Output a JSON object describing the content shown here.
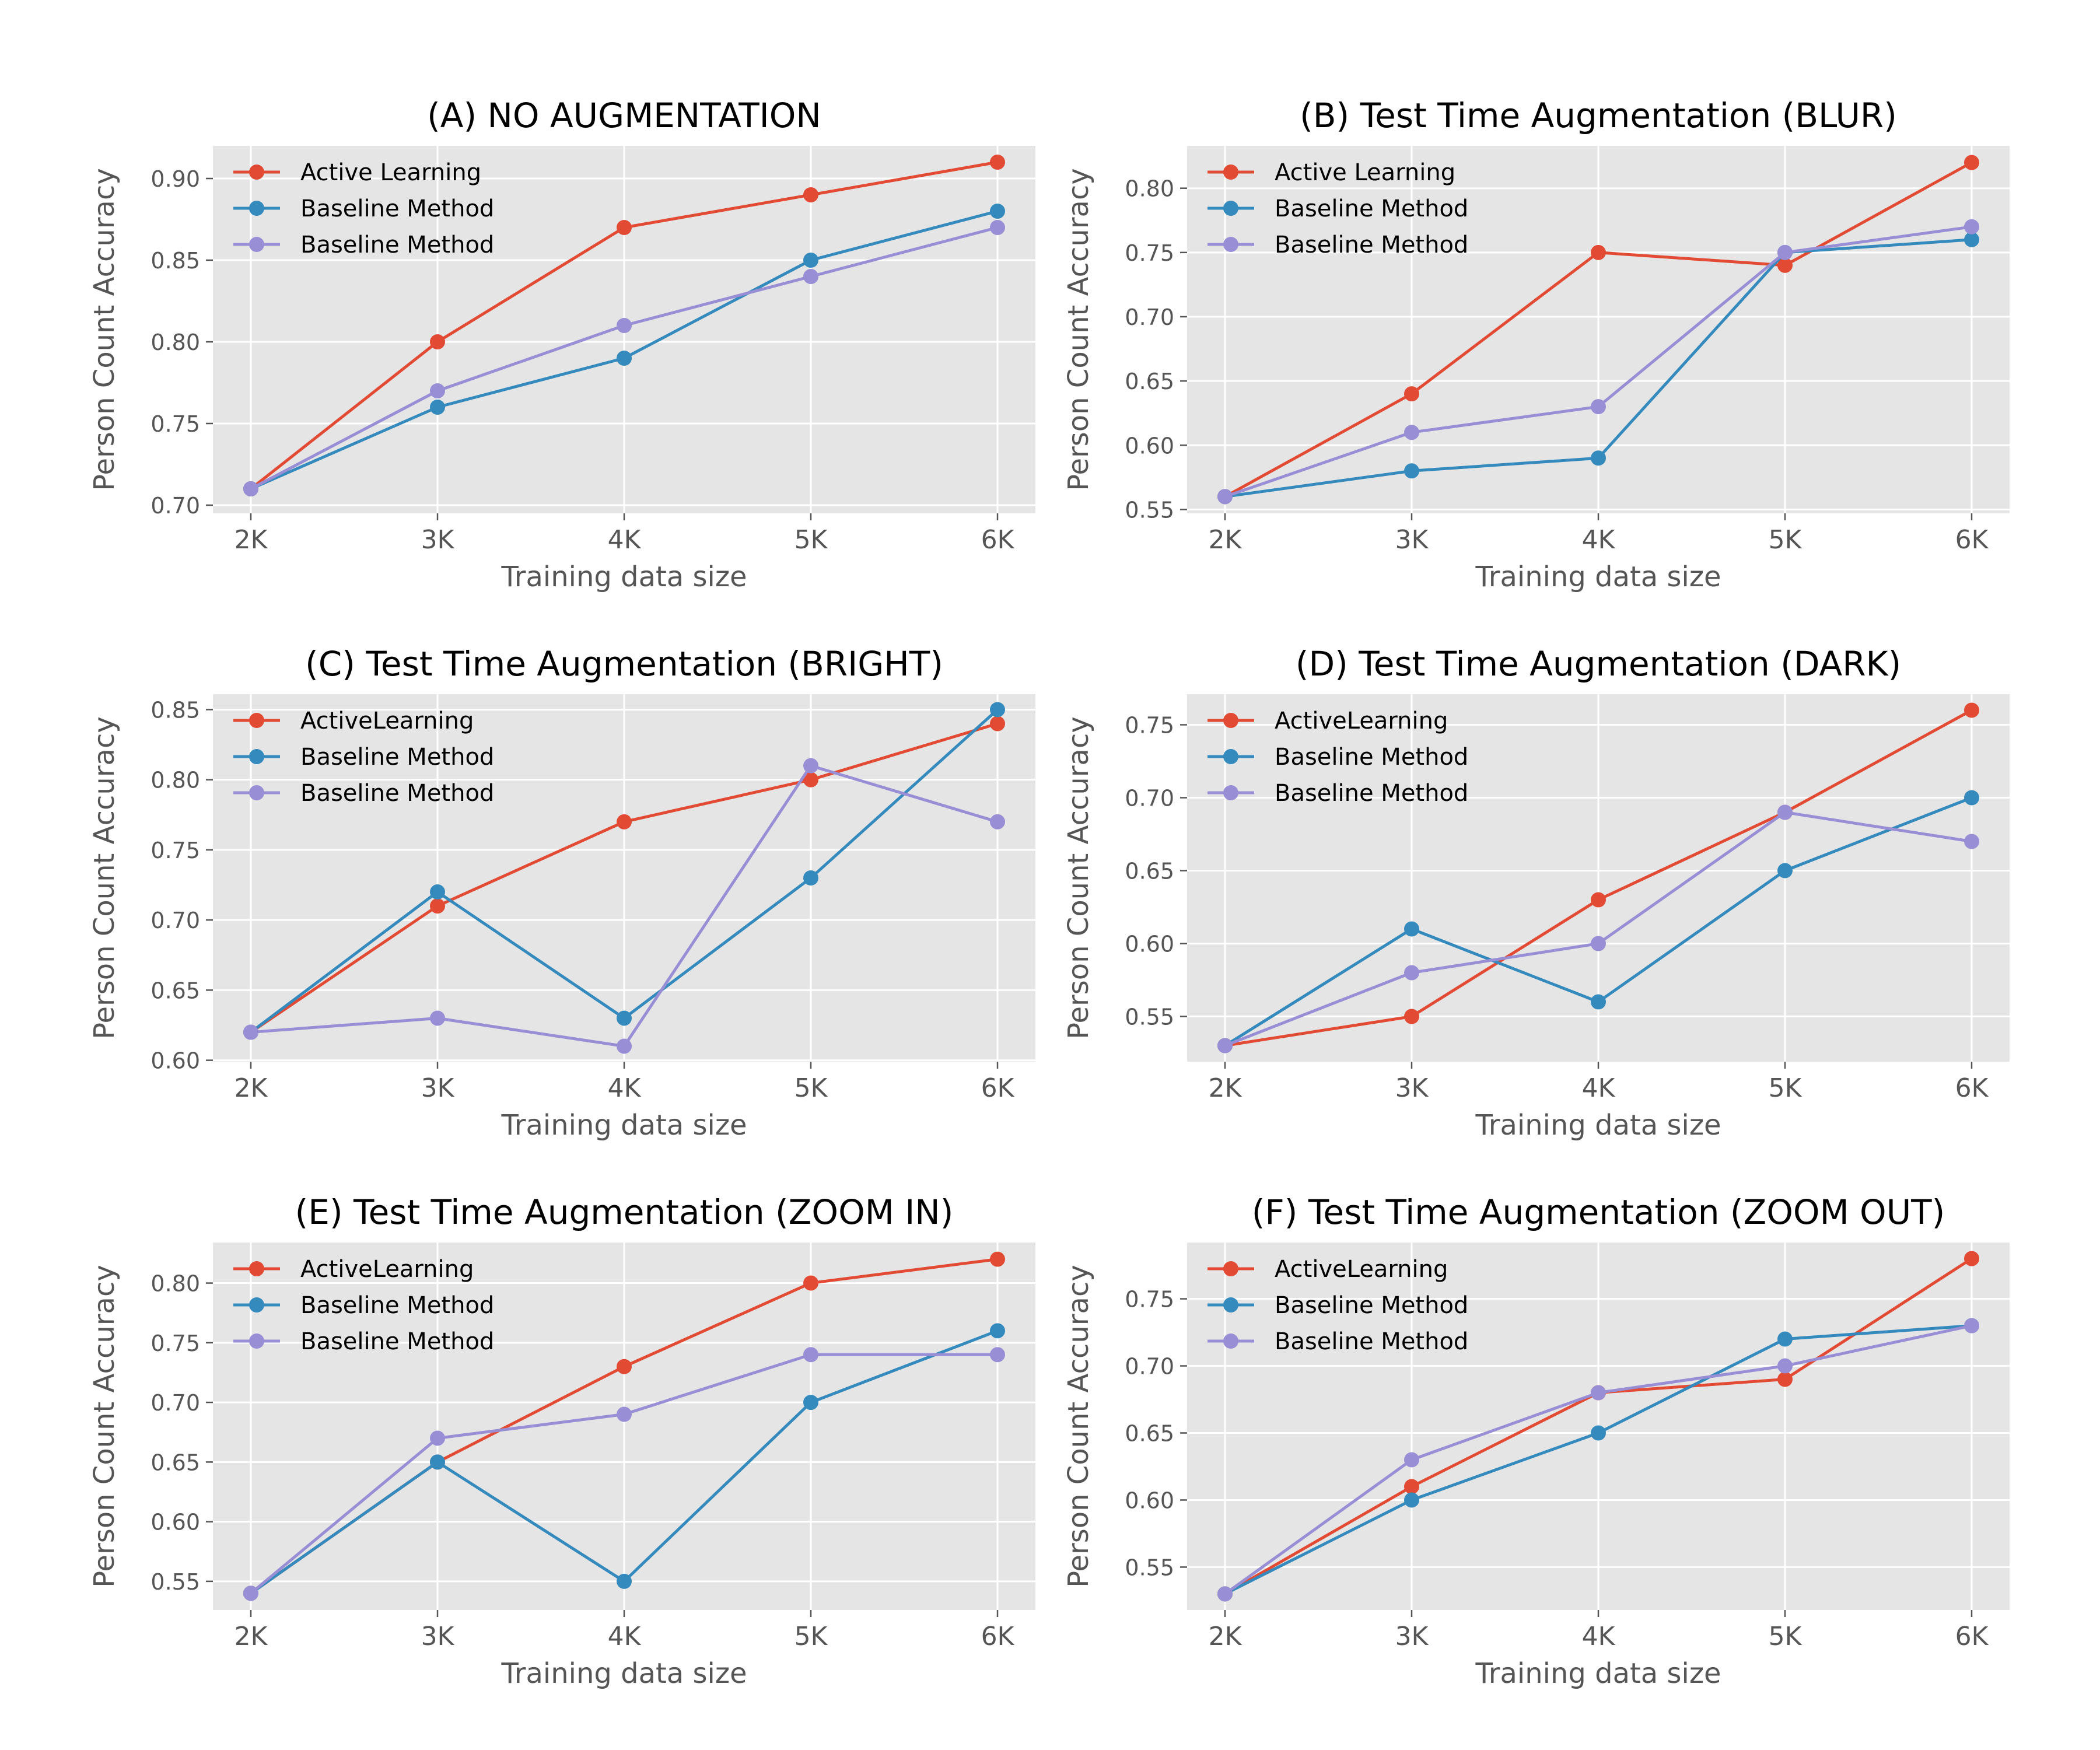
{
  "chart_data": [
    {
      "type": "line",
      "title": "(A) NO AUGMENTATION",
      "xlabel": "Training data size",
      "ylabel": "Person Count Accuracy",
      "categories": [
        "2K",
        "3K",
        "4K",
        "5K",
        "6K"
      ],
      "ylim": [
        0.695,
        0.92
      ],
      "yticks": [
        0.7,
        0.75,
        0.8,
        0.85,
        0.9
      ],
      "ytick_labels": [
        "0.70",
        "0.75",
        "0.80",
        "0.85",
        "0.90"
      ],
      "grid": true,
      "legend_position": "top-left",
      "series": [
        {
          "name": "Active Learning",
          "color": "#E24A33",
          "values": [
            0.71,
            0.8,
            0.87,
            0.89,
            0.91
          ]
        },
        {
          "name": "Baseline Method",
          "color": "#348ABD",
          "values": [
            0.71,
            0.76,
            0.79,
            0.85,
            0.88
          ]
        },
        {
          "name": "Baseline Method",
          "color": "#988ED5",
          "values": [
            0.71,
            0.77,
            0.81,
            0.84,
            0.87
          ]
        }
      ]
    },
    {
      "type": "line",
      "title": "(B) Test Time Augmentation (BLUR)",
      "xlabel": "Training data size",
      "ylabel": "Person Count Accuracy",
      "categories": [
        "2K",
        "3K",
        "4K",
        "5K",
        "6K"
      ],
      "ylim": [
        0.547,
        0.833
      ],
      "yticks": [
        0.55,
        0.6,
        0.65,
        0.7,
        0.75,
        0.8
      ],
      "ytick_labels": [
        "0.55",
        "0.60",
        "0.65",
        "0.70",
        "0.75",
        "0.80"
      ],
      "grid": true,
      "legend_position": "top-left",
      "series": [
        {
          "name": "Active Learning",
          "color": "#E24A33",
          "values": [
            0.56,
            0.64,
            0.75,
            0.74,
            0.82
          ]
        },
        {
          "name": "Baseline Method",
          "color": "#348ABD",
          "values": [
            0.56,
            0.58,
            0.59,
            0.75,
            0.76
          ]
        },
        {
          "name": "Baseline Method",
          "color": "#988ED5",
          "values": [
            0.56,
            0.61,
            0.63,
            0.75,
            0.77
          ]
        }
      ]
    },
    {
      "type": "line",
      "title": "(C) Test Time Augmentation (BRIGHT)",
      "xlabel": "Training data size",
      "ylabel": "Person Count Accuracy",
      "categories": [
        "2K",
        "3K",
        "4K",
        "5K",
        "6K"
      ],
      "ylim": [
        0.599,
        0.861
      ],
      "yticks": [
        0.6,
        0.65,
        0.7,
        0.75,
        0.8,
        0.85
      ],
      "ytick_labels": [
        "0.60",
        "0.65",
        "0.70",
        "0.75",
        "0.80",
        "0.85"
      ],
      "grid": true,
      "legend_position": "top-left",
      "series": [
        {
          "name": "ActiveLearning",
          "color": "#E24A33",
          "values": [
            0.62,
            0.71,
            0.77,
            0.8,
            0.84
          ]
        },
        {
          "name": "Baseline Method",
          "color": "#348ABD",
          "values": [
            0.62,
            0.72,
            0.63,
            0.73,
            0.85
          ]
        },
        {
          "name": "Baseline Method",
          "color": "#988ED5",
          "values": [
            0.62,
            0.63,
            0.61,
            0.81,
            0.77
          ]
        }
      ]
    },
    {
      "type": "line",
      "title": "(D) Test Time Augmentation (DARK)",
      "xlabel": "Training data size",
      "ylabel": "Person Count Accuracy",
      "categories": [
        "2K",
        "3K",
        "4K",
        "5K",
        "6K"
      ],
      "ylim": [
        0.519,
        0.771
      ],
      "yticks": [
        0.55,
        0.6,
        0.65,
        0.7,
        0.75
      ],
      "ytick_labels": [
        "0.55",
        "0.60",
        "0.65",
        "0.70",
        "0.75"
      ],
      "grid": true,
      "legend_position": "top-left",
      "series": [
        {
          "name": "ActiveLearning",
          "color": "#E24A33",
          "values": [
            0.53,
            0.55,
            0.63,
            0.69,
            0.76
          ]
        },
        {
          "name": "Baseline Method",
          "color": "#348ABD",
          "values": [
            0.53,
            0.61,
            0.56,
            0.65,
            0.7
          ]
        },
        {
          "name": "Baseline Method",
          "color": "#988ED5",
          "values": [
            0.53,
            0.58,
            0.6,
            0.69,
            0.67
          ]
        }
      ]
    },
    {
      "type": "line",
      "title": "(E) Test Time Augmentation (ZOOM IN)",
      "xlabel": "Training data size",
      "ylabel": "Person Count Accuracy",
      "categories": [
        "2K",
        "3K",
        "4K",
        "5K",
        "6K"
      ],
      "ylim": [
        0.526,
        0.834
      ],
      "yticks": [
        0.55,
        0.6,
        0.65,
        0.7,
        0.75,
        0.8
      ],
      "ytick_labels": [
        "0.55",
        "0.60",
        "0.65",
        "0.70",
        "0.75",
        "0.80"
      ],
      "grid": true,
      "legend_position": "top-left",
      "series": [
        {
          "name": "ActiveLearning",
          "color": "#E24A33",
          "values": [
            0.54,
            0.65,
            0.73,
            0.8,
            0.82
          ]
        },
        {
          "name": "Baseline Method",
          "color": "#348ABD",
          "values": [
            0.54,
            0.65,
            0.55,
            0.7,
            0.76
          ]
        },
        {
          "name": "Baseline Method",
          "color": "#988ED5",
          "values": [
            0.54,
            0.67,
            0.69,
            0.74,
            0.74
          ]
        }
      ]
    },
    {
      "type": "line",
      "title": "(F) Test Time Augmentation (ZOOM OUT)",
      "xlabel": "Training data size",
      "ylabel": "Person Count Accuracy",
      "categories": [
        "2K",
        "3K",
        "4K",
        "5K",
        "6K"
      ],
      "ylim": [
        0.518,
        0.792
      ],
      "yticks": [
        0.55,
        0.6,
        0.65,
        0.7,
        0.75
      ],
      "ytick_labels": [
        "0.55",
        "0.60",
        "0.65",
        "0.70",
        "0.75"
      ],
      "grid": true,
      "legend_position": "top-left",
      "series": [
        {
          "name": "ActiveLearning",
          "color": "#E24A33",
          "values": [
            0.53,
            0.61,
            0.68,
            0.69,
            0.78
          ]
        },
        {
          "name": "Baseline Method",
          "color": "#348ABD",
          "values": [
            0.53,
            0.6,
            0.65,
            0.72,
            0.73
          ]
        },
        {
          "name": "Baseline Method",
          "color": "#988ED5",
          "values": [
            0.53,
            0.63,
            0.68,
            0.7,
            0.73
          ]
        }
      ]
    }
  ],
  "style": {
    "plot_background": "#E5E5E5",
    "grid_color": "#FFFFFF",
    "text_color": "#555555",
    "title_color": "#000000"
  }
}
